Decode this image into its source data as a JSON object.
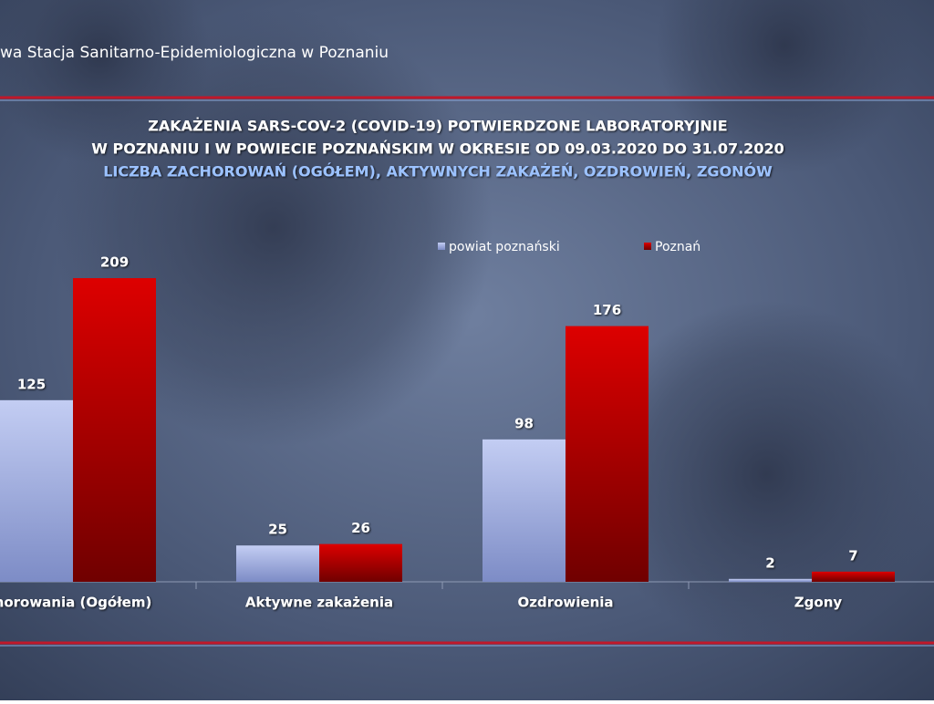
{
  "header": "wa Stacja Sanitarno-Epidemiologiczna w Poznaniu",
  "chart_data": {
    "type": "bar",
    "title_lines": [
      "ZAKAŻENIA SARS-COV-2 (COVID-19) POTWIERDZONE LABORATORYJNIE",
      "W POZNANIU I W POWIECIE POZNAŃSKIM W OKRESIE OD 09.03.2020 DO 31.07.2020"
    ],
    "subtitle": "LICZBA ZACHOROWAŃ (OGÓŁEM), AKTYWNYCH ZAKAŻEŃ, OZDROWIEŃ, ZGONÓW",
    "categories": [
      "horowania (Ogółem)",
      "Aktywne zakażenia",
      "Ozdrowienia",
      "Zgony"
    ],
    "series": [
      {
        "name": "powiat poznański",
        "color": "#a9b6e6",
        "values": [
          125,
          25,
          98,
          2
        ]
      },
      {
        "name": "Poznań",
        "color": "#c80000",
        "values": [
          209,
          26,
          176,
          7
        ]
      }
    ]
  }
}
